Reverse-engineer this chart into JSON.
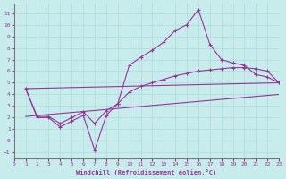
{
  "xlabel": "Windchill (Refroidissement éolien,°C)",
  "bg_color": "#c8ecec",
  "line_color": "#993399",
  "grid_color": "#aadddd",
  "xlim": [
    0,
    23
  ],
  "ylim": [
    -1.5,
    11.8
  ],
  "yticks": [
    -1,
    0,
    1,
    2,
    3,
    4,
    5,
    6,
    7,
    8,
    9,
    10,
    11
  ],
  "xticks": [
    0,
    1,
    2,
    3,
    4,
    5,
    6,
    7,
    8,
    9,
    10,
    11,
    12,
    13,
    14,
    15,
    16,
    17,
    18,
    19,
    20,
    21,
    22,
    23
  ],
  "line1_x": [
    1,
    2,
    3,
    4,
    5,
    6,
    7,
    8,
    9,
    10,
    11,
    12,
    13,
    14,
    15,
    16,
    17,
    18,
    19,
    20,
    21,
    22,
    23
  ],
  "line1_y": [
    4.5,
    2.0,
    2.0,
    1.2,
    1.7,
    2.2,
    -0.8,
    2.2,
    3.2,
    6.5,
    7.2,
    7.8,
    8.5,
    9.5,
    10.0,
    11.3,
    8.3,
    7.0,
    6.7,
    6.5,
    5.7,
    5.5,
    5.0
  ],
  "line2_x": [
    1,
    2,
    3,
    4,
    5,
    6,
    7,
    8,
    9,
    10,
    11,
    12,
    13,
    14,
    15,
    16,
    17,
    18,
    19,
    20,
    21,
    22,
    23
  ],
  "line2_y": [
    4.5,
    2.1,
    2.1,
    1.5,
    2.0,
    2.5,
    1.5,
    2.6,
    3.2,
    4.2,
    4.7,
    5.0,
    5.3,
    5.6,
    5.8,
    6.0,
    6.1,
    6.2,
    6.3,
    6.3,
    6.2,
    6.0,
    5.0
  ],
  "line3_x": [
    1,
    23
  ],
  "line3_y": [
    4.5,
    5.0
  ],
  "line4_x": [
    1,
    23
  ],
  "line4_y": [
    2.1,
    4.0
  ]
}
